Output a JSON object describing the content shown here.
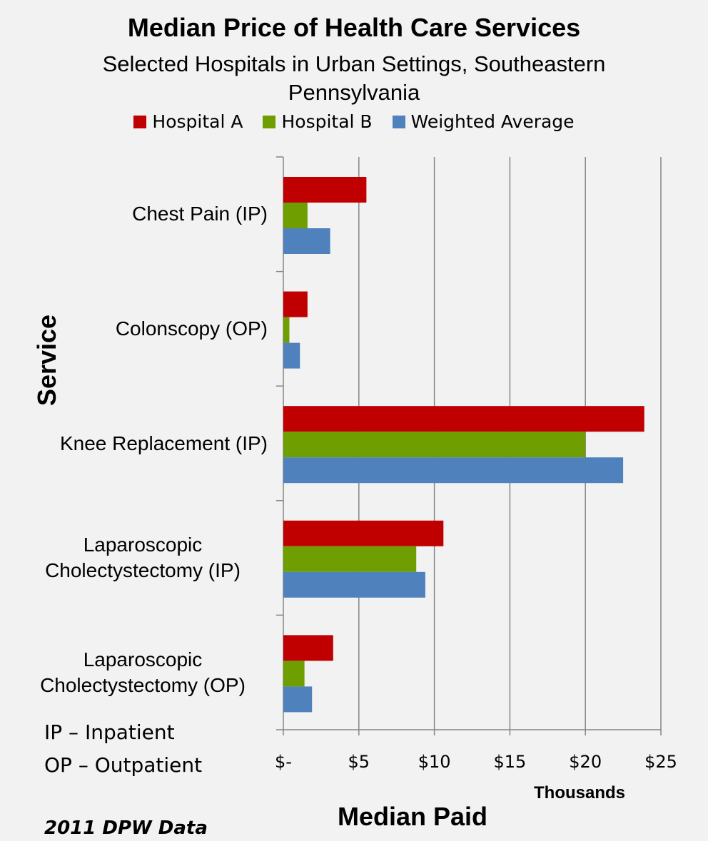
{
  "chart_data": {
    "type": "bar",
    "orientation": "horizontal",
    "title": "Median Price of Health Care Services",
    "subtitle": "Selected Hospitals in Urban Settings, Southeastern Pennsylvania",
    "categories": [
      "Chest Pain (IP)",
      "Colonscopy (OP)",
      "Knee Replacement (IP)",
      "Laparoscopic Cholectystectomy (IP)",
      "Laparoscopic Cholectystectomy (OP)"
    ],
    "series": [
      {
        "name": "Hospital A",
        "color": "#c00000",
        "values": [
          5.5,
          1.6,
          23.9,
          10.6,
          3.3
        ]
      },
      {
        "name": "Hospital B",
        "color": "#6e9e00",
        "values": [
          1.6,
          0.4,
          20.0,
          8.8,
          1.4
        ]
      },
      {
        "name": "Weighted Average",
        "color": "#4f81bd",
        "values": [
          3.1,
          1.1,
          22.5,
          9.4,
          1.9
        ]
      }
    ],
    "xlim": [
      0,
      25
    ],
    "xticks": [
      {
        "value": 0,
        "label": "$-"
      },
      {
        "value": 5,
        "label": "$5"
      },
      {
        "value": 10,
        "label": "$10"
      },
      {
        "value": 15,
        "label": "$15"
      },
      {
        "value": 20,
        "label": "$20"
      },
      {
        "value": 25,
        "label": "$25"
      }
    ],
    "xlabel": "Median Paid",
    "xunit": "Thousands",
    "ylabel": "Service",
    "annotations": [
      "IP – Inpatient",
      "OP – Outpatient",
      "2011 DPW Data"
    ],
    "grid": true,
    "legend": "top"
  }
}
